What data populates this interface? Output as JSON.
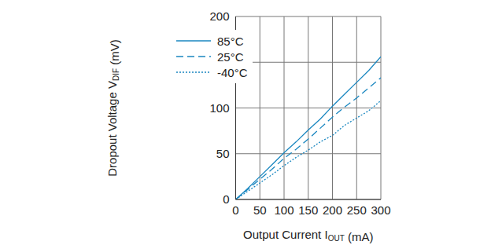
{
  "chart_data": {
    "type": "line",
    "xlabel": "Output Current IOUT (mA)",
    "ylabel": "Dropout Voltage VDIF (mV)",
    "x": [
      0,
      25,
      50,
      75,
      100,
      125,
      150,
      175,
      200,
      225,
      250,
      275,
      300
    ],
    "series": [
      {
        "name": "85°C",
        "color": "#1a87c0",
        "line_style": "solid",
        "values": [
          0,
          12,
          25,
          38,
          51,
          63,
          76,
          88,
          102,
          115,
          128,
          141,
          156
        ]
      },
      {
        "name": "25°C",
        "color": "#1a87c0",
        "line_style": "dashed",
        "values": [
          0,
          11,
          22,
          33,
          45,
          55,
          66,
          78,
          90,
          101,
          111,
          122,
          133
        ]
      },
      {
        "name": "-40°C",
        "color": "#1a87c0",
        "line_style": "dotted",
        "values": [
          0,
          9,
          18,
          27,
          37,
          46,
          54,
          63,
          70,
          81,
          89,
          97,
          108
        ]
      }
    ],
    "xlim": [
      0,
      300
    ],
    "xticks": [
      0,
      50,
      100,
      150,
      200,
      250,
      300
    ],
    "ylim": [
      0,
      200
    ],
    "yticks": [
      0,
      50,
      100,
      150,
      200
    ],
    "grid": true,
    "legend": "upper left"
  }
}
